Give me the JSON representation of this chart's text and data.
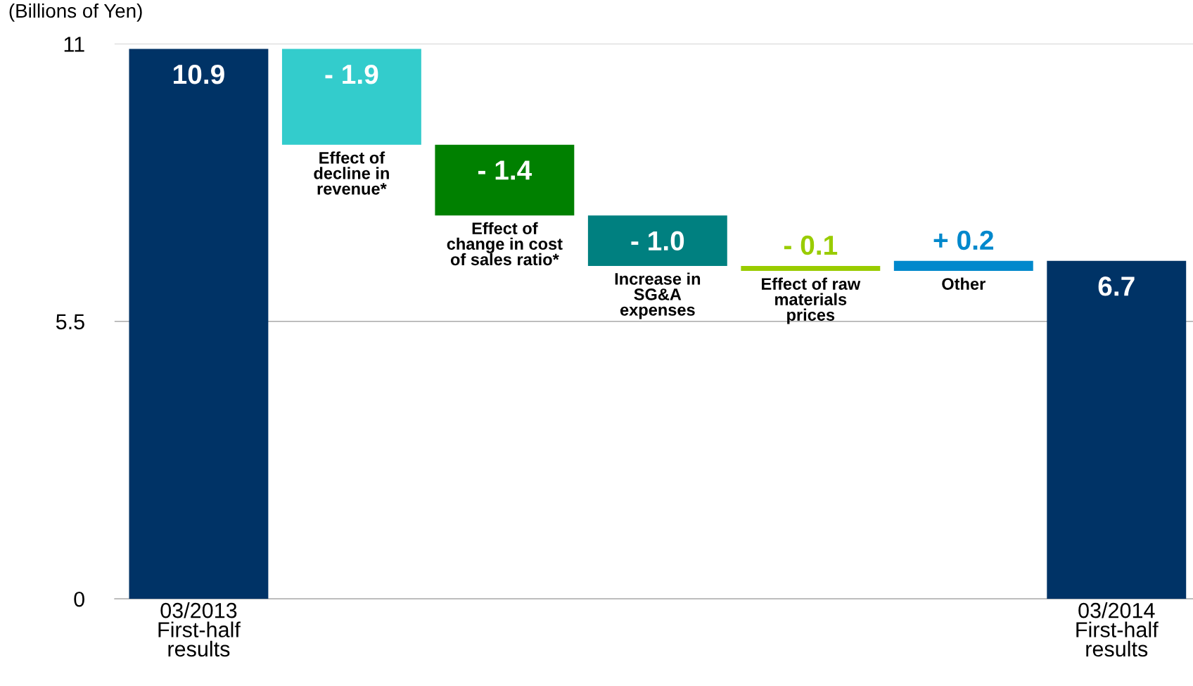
{
  "chart_data": {
    "type": "bar",
    "ylabel": "(Billions of Yen)",
    "categories": [
      "03/2013\nFirst-half\nresults",
      "Effect of\ndecline in\nrevenue*",
      "Effect of\nchange in cost\nof sales ratio*",
      "Increase in\nSG&A\nexpenses",
      "Effect of raw\nmaterials\nprices",
      "Other",
      "03/2014\nFirst-half\nresults"
    ],
    "values": [
      10.9,
      -1.9,
      -1.4,
      -1.0,
      -0.1,
      0.2,
      6.7
    ],
    "base": [
      0,
      10.9,
      9.0,
      7.6,
      6.6,
      6.5,
      0
    ],
    "colors": [
      "#003366",
      "#33cccc",
      "#008000",
      "#008080",
      "#99cc00",
      "#0088cc",
      "#003366"
    ],
    "value_labels": [
      "10.9",
      "- 1.9",
      "- 1.4",
      "- 1.0",
      "- 0.1",
      "+ 0.2",
      "6.7"
    ],
    "ylim": [
      0,
      11
    ],
    "yticks": [
      0,
      5.5,
      11
    ],
    "grid": "y"
  }
}
